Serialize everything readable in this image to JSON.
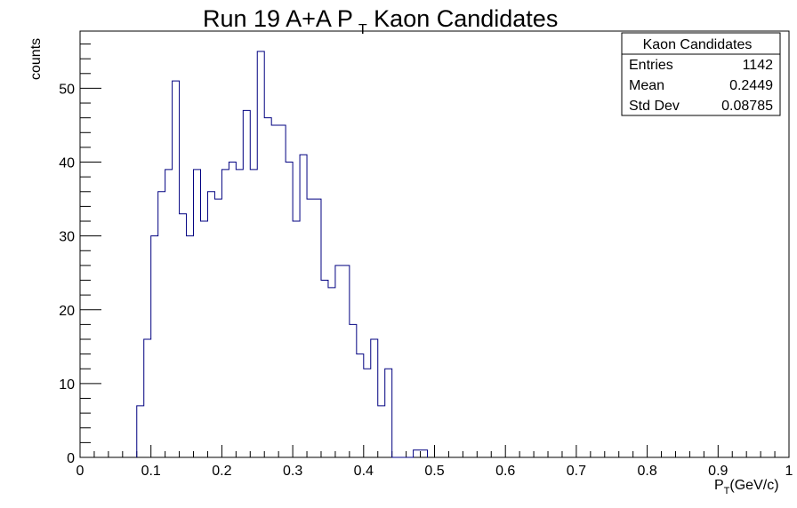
{
  "chart_data": {
    "type": "histogram",
    "title_main": "Run 19 A+A P",
    "title_sub": "T",
    "title_rest": " Kaon Candidates",
    "xlabel_main": "P",
    "xlabel_sub": "T",
    "xlabel_rest": "(GeV/c)",
    "ylabel": "counts",
    "xlim": [
      0,
      1
    ],
    "ylim": [
      0,
      57.75
    ],
    "bin_width": 0.01,
    "x_ticks": [
      0,
      0.1,
      0.2,
      0.3,
      0.4,
      0.5,
      0.6,
      0.7,
      0.8,
      0.9,
      1
    ],
    "x_tick_labels": [
      "0",
      "0.1",
      "0.2",
      "0.3",
      "0.4",
      "0.5",
      "0.6",
      "0.7",
      "0.8",
      "0.9",
      "1"
    ],
    "y_ticks": [
      0,
      10,
      20,
      30,
      40,
      50
    ],
    "y_tick_labels": [
      "0",
      "10",
      "20",
      "30",
      "40",
      "50"
    ],
    "line_color": "#000080",
    "values": [
      0,
      0,
      0,
      0,
      0,
      0,
      0,
      0,
      7,
      16,
      30,
      36,
      39,
      51,
      33,
      30,
      39,
      32,
      36,
      35,
      39,
      40,
      39,
      47,
      39,
      55,
      46,
      45,
      45,
      40,
      32,
      41,
      35,
      35,
      24,
      23,
      26,
      26,
      18,
      14,
      12,
      16,
      7,
      12,
      0,
      0,
      0,
      1,
      1,
      0,
      0,
      0,
      0,
      0,
      0,
      0,
      0,
      0,
      0,
      0,
      0,
      0,
      0,
      0,
      0,
      0,
      0,
      0,
      0,
      0,
      0,
      0,
      0,
      0,
      0,
      0,
      0,
      0,
      0,
      0,
      0,
      0,
      0,
      0,
      0,
      0,
      0,
      0,
      0,
      0,
      0,
      0,
      0,
      0,
      0,
      0,
      0,
      0,
      0,
      0
    ],
    "stats": {
      "title": "Kaon Candidates",
      "rows": [
        {
          "label": "Entries",
          "value": "1142"
        },
        {
          "label": "Mean",
          "value": "0.2449"
        },
        {
          "label": "Std Dev",
          "value": "0.08785"
        }
      ]
    }
  }
}
